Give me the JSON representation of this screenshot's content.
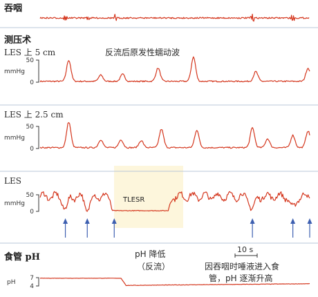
{
  "sections": {
    "swallow": "吞咽",
    "manometry": "测压术",
    "ph": "食管 pH"
  },
  "annotations": {
    "reflux_wave": "反流后原发性蠕动波",
    "tlesr": "TLESR",
    "ph_drop_1": "pH 降低",
    "ph_drop_2": "（反流）",
    "ph_rise_1": "因吞咽时唾液进入食",
    "ph_rise_2": "管，pH 逐渐升高",
    "scale_bar": "10 s"
  },
  "colors": {
    "trace": "#d4351c",
    "arrow": "#3d5fb0",
    "separator": "#b9c7d8",
    "highlight": "#fbeec0"
  },
  "chart_data": {
    "type": "line",
    "time_span_s": 80,
    "channels": [
      {
        "id": "les_5",
        "label": "LES 上 5 cm",
        "unit": "mmHg",
        "yticks": [
          0,
          50
        ],
        "ylim": [
          -5,
          70
        ],
        "baseline": 2,
        "peaks": [
          {
            "t": 8.5,
            "amp": 48
          },
          {
            "t": 18,
            "amp": 14
          },
          {
            "t": 24.5,
            "amp": 16
          },
          {
            "t": 35,
            "amp": 30
          },
          {
            "t": 45.5,
            "amp": 55
          },
          {
            "t": 64,
            "amp": 22
          },
          {
            "t": 79.5,
            "amp": 30
          }
        ]
      },
      {
        "id": "les_2_5",
        "label": "LES 上 2.5 cm",
        "unit": "mmHg",
        "yticks": [
          0,
          50
        ],
        "ylim": [
          -5,
          70
        ],
        "baseline": 2,
        "peaks": [
          {
            "t": 8.5,
            "amp": 58
          },
          {
            "t": 18,
            "amp": 18
          },
          {
            "t": 24,
            "amp": 18
          },
          {
            "t": 30,
            "amp": 16
          },
          {
            "t": 36,
            "amp": 42
          },
          {
            "t": 46.5,
            "amp": 40
          },
          {
            "t": 63,
            "amp": 45
          },
          {
            "t": 67.5,
            "amp": 20
          },
          {
            "t": 75,
            "amp": 28
          },
          {
            "t": 79.5,
            "amp": 38
          }
        ]
      },
      {
        "id": "les",
        "label": "LES",
        "unit": "mmHg",
        "yticks": [
          0,
          50
        ],
        "ylim": [
          -5,
          80
        ],
        "tlesr_window_s": [
          22,
          38
        ],
        "tlesr_level": 2,
        "resting_level": 45
      }
    ],
    "swallow_markers_s": [
      7.5,
      14,
      22,
      63,
      75,
      84
    ],
    "ph": {
      "label": "pH",
      "yticks": [
        4,
        7
      ],
      "before": 6.8,
      "after": 4.2,
      "drop_t": 24,
      "recovery_to": 4.8
    }
  }
}
